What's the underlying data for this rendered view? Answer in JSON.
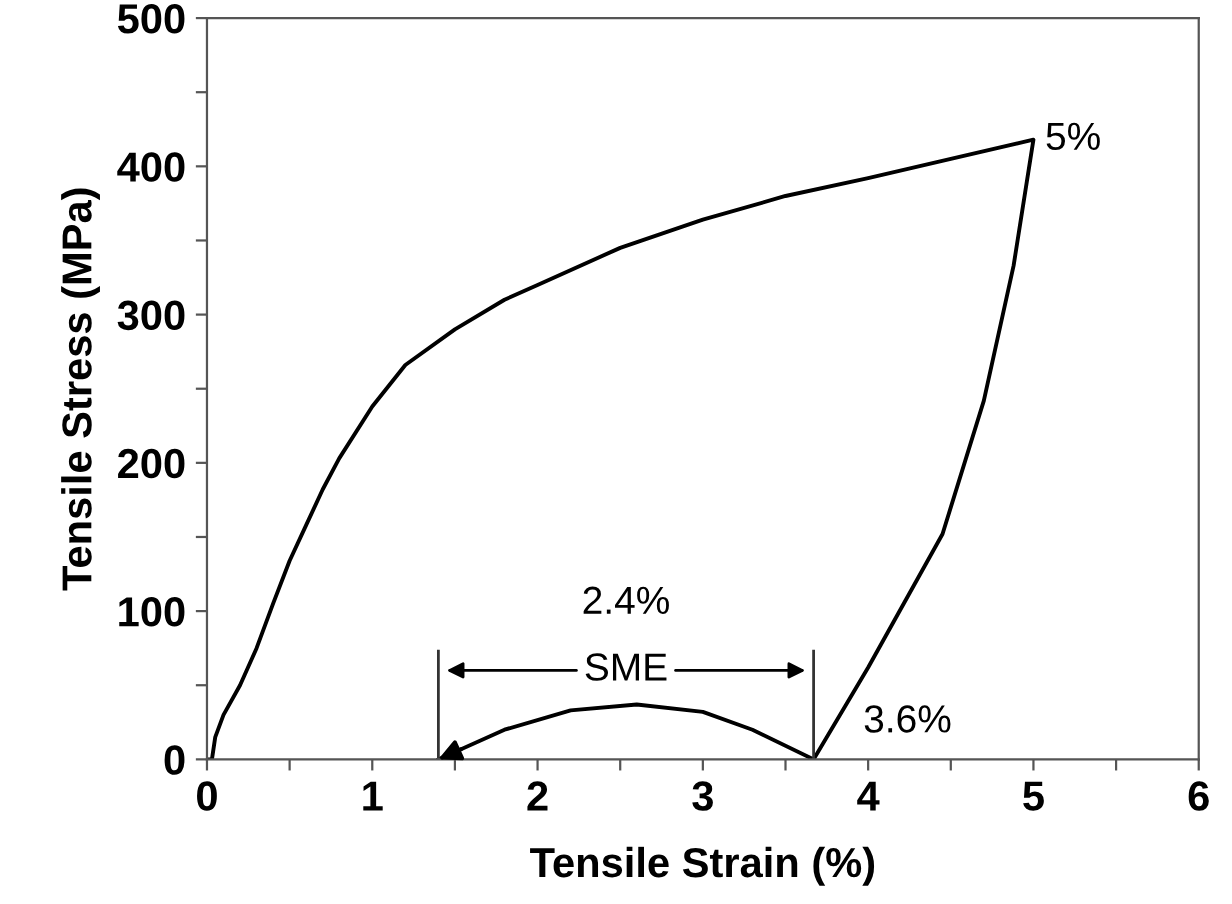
{
  "chart_data": {
    "type": "line",
    "xlabel": "Tensile Strain (%)",
    "ylabel": "Tensile Stress (MPa)",
    "xlim": [
      0,
      6
    ],
    "ylim": [
      0,
      500
    ],
    "xticks": [
      0,
      {
        "value": 0.5,
        "label": null
      },
      1,
      {
        "value": 1.5,
        "label": null
      },
      2,
      {
        "value": 2.5,
        "label": null
      },
      3,
      {
        "value": 3.5,
        "label": null
      },
      4,
      {
        "value": 4.5,
        "label": null
      },
      5,
      {
        "value": 5.5,
        "label": null
      },
      6
    ],
    "yticks": [
      0,
      {
        "value": 50,
        "label": null
      },
      100,
      {
        "value": 150,
        "label": null
      },
      200,
      {
        "value": 250,
        "label": null
      },
      300,
      {
        "value": 350,
        "label": null
      },
      400,
      {
        "value": 450,
        "label": null
      },
      500
    ],
    "grid": false,
    "marker": "none",
    "line_style": "solid",
    "series": [
      {
        "color": "#000000",
        "x": [
          0,
          0.03,
          0.05,
          0.1,
          0.2,
          0.3,
          0.4,
          0.5,
          0.6,
          0.7,
          0.8,
          1.0,
          1.2,
          1.5,
          1.8,
          2.0,
          2.5,
          3.0,
          3.5,
          4.0,
          4.5,
          5.0,
          4.88,
          4.7,
          4.45,
          4.0,
          3.67
        ],
        "values": [
          0,
          0,
          15,
          30,
          50,
          75,
          105,
          134,
          158,
          182,
          203,
          238,
          266,
          290,
          310,
          320,
          345,
          364,
          380,
          392,
          405,
          418,
          333,
          242,
          152,
          62,
          0
        ]
      },
      {
        "color": "#000000",
        "x": [
          3.67,
          3.3,
          3.0,
          2.6,
          2.2,
          1.8,
          1.4
        ],
        "values": [
          0,
          20,
          32,
          37,
          33,
          20,
          0
        ]
      }
    ],
    "annotations": [
      {
        "text": "5%",
        "x": 5,
        "y": 418
      },
      "2.4%",
      "SME",
      {
        "text": "3.6%",
        "x": 3.67,
        "y": 0
      }
    ]
  }
}
